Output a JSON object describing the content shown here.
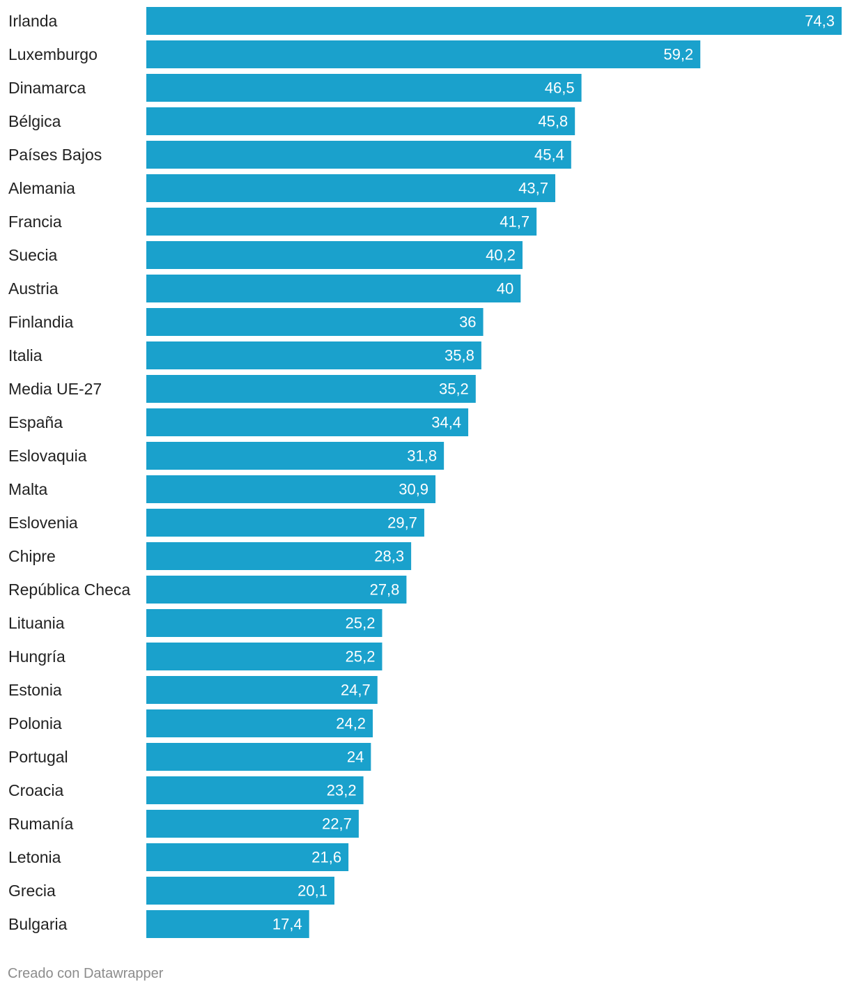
{
  "colors": {
    "bar": "#1aa1cc",
    "label_text": "#222222",
    "value_text": "#ffffff",
    "credit_text": "#8c8c8c"
  },
  "footer": {
    "credit": "Creado con Datawrapper"
  },
  "chart_data": {
    "type": "bar",
    "orientation": "horizontal",
    "grid": false,
    "categories": [
      "Irlanda",
      "Luxemburgo",
      "Dinamarca",
      "Bélgica",
      "Países Bajos",
      "Alemania",
      "Francia",
      "Suecia",
      "Austria",
      "Finlandia",
      "Italia",
      "Media UE-27",
      "España",
      "Eslovaquia",
      "Malta",
      "Eslovenia",
      "Chipre",
      "República Checa",
      "Lituania",
      "Hungría",
      "Estonia",
      "Polonia",
      "Portugal",
      "Croacia",
      "Rumanía",
      "Letonia",
      "Grecia",
      "Bulgaria"
    ],
    "values": [
      74.3,
      59.2,
      46.5,
      45.8,
      45.4,
      43.7,
      41.7,
      40.2,
      40,
      36,
      35.8,
      35.2,
      34.4,
      31.8,
      30.9,
      29.7,
      28.3,
      27.8,
      25.2,
      25.2,
      24.7,
      24.2,
      24,
      23.2,
      22.7,
      21.6,
      20.1,
      17.4
    ],
    "value_labels": [
      "74,3",
      "59,2",
      "46,5",
      "45,8",
      "45,4",
      "43,7",
      "41,7",
      "40,2",
      "40",
      "36",
      "35,8",
      "35,2",
      "34,4",
      "31,8",
      "30,9",
      "29,7",
      "28,3",
      "27,8",
      "25,2",
      "25,2",
      "24,7",
      "24,2",
      "24",
      "23,2",
      "22,7",
      "21,6",
      "20,1",
      "17,4"
    ],
    "xlim": [
      0,
      74.3
    ]
  }
}
